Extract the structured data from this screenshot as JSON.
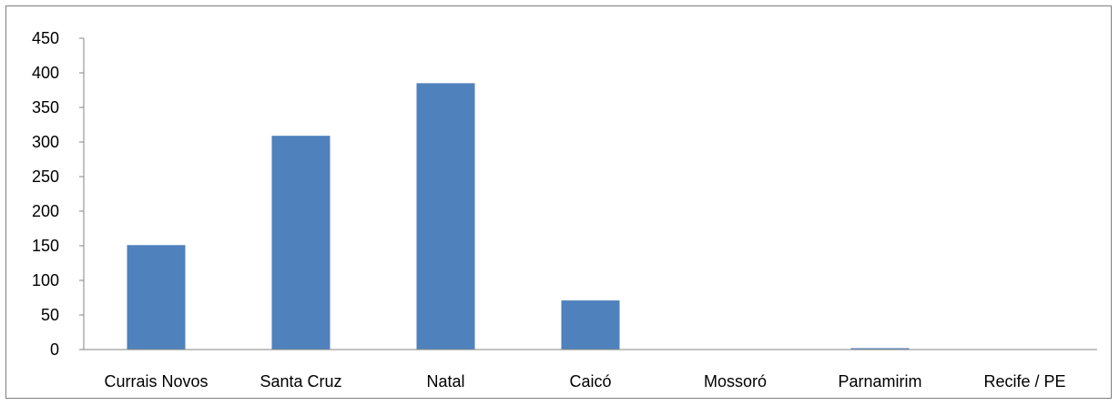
{
  "chart_data": {
    "type": "bar",
    "title": "",
    "xlabel": "",
    "ylabel": "",
    "categories": [
      "Currais Novos",
      "Santa Cruz",
      "Natal",
      "Caicó",
      "Mossoró",
      "Parnamirim",
      "Recife / PE"
    ],
    "values": [
      151,
      309,
      385,
      71,
      0,
      2,
      0
    ],
    "ylim": [
      0,
      450
    ],
    "yticks": [
      0,
      50,
      100,
      150,
      200,
      250,
      300,
      350,
      400,
      450
    ],
    "ytick_labels": [
      "0",
      "50",
      "100",
      "150",
      "200",
      "250",
      "300",
      "350",
      "400",
      "450"
    ],
    "grid": false,
    "legend": "none",
    "bar_color": "#4f81bd",
    "axis_color": "#868686"
  }
}
